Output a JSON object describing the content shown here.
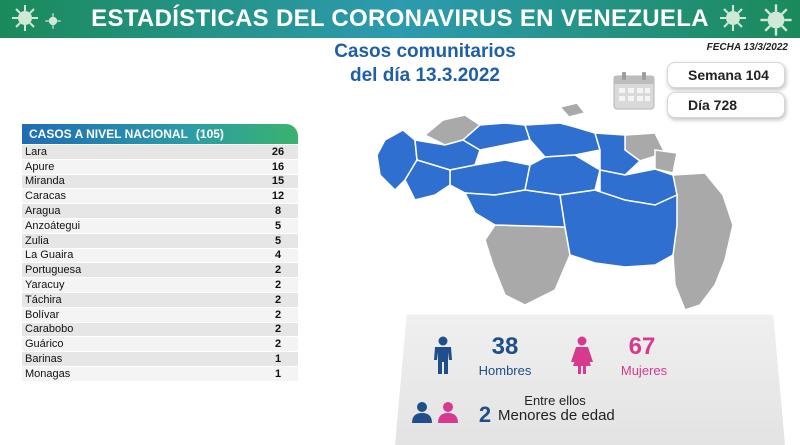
{
  "header": {
    "title": "ESTADÍSTICAS DEL CORONAVIRUS EN VENEZUELA"
  },
  "subtitle": {
    "line1": "Casos comunitarios",
    "line2": "del día 13.3.2022"
  },
  "fecha": "FECHA 13/3/2022",
  "week": {
    "label": "Semana 104"
  },
  "day": {
    "label": "Día 728"
  },
  "table": {
    "title": "CASOS A NIVEL NACIONAL",
    "total": "(105)",
    "rows": [
      {
        "state": "Lara",
        "cases": "26"
      },
      {
        "state": "Apure",
        "cases": "16"
      },
      {
        "state": "Miranda",
        "cases": "15"
      },
      {
        "state": "Caracas",
        "cases": "12"
      },
      {
        "state": "Aragua",
        "cases": "8"
      },
      {
        "state": "Anzoátegui",
        "cases": "5"
      },
      {
        "state": "Zulia",
        "cases": "5"
      },
      {
        "state": "La Guaira",
        "cases": "4"
      },
      {
        "state": "Portuguesa",
        "cases": "2"
      },
      {
        "state": "Yaracuy",
        "cases": "2"
      },
      {
        "state": "Táchira",
        "cases": "2"
      },
      {
        "state": "Bolívar",
        "cases": "2"
      },
      {
        "state": "Carabobo",
        "cases": "2"
      },
      {
        "state": "Guárico",
        "cases": "2"
      },
      {
        "state": "Barinas",
        "cases": "1"
      },
      {
        "state": "Monagas",
        "cases": "1"
      }
    ]
  },
  "gender": {
    "men_count": "38",
    "men_label": "Hombres",
    "women_count": "67",
    "women_label": "Mujeres"
  },
  "minors": {
    "title": "Entre ellos",
    "count": "2",
    "label": "Menores de edad"
  },
  "colors": {
    "header_green": "#1b8a5a",
    "header_blue": "#2d9bb0",
    "title_blue": "#1f5fa8",
    "map_blue": "#2f6fd0",
    "map_gray": "#a9a9a9",
    "men_blue": "#1f4e8a",
    "women_pink": "#d63a8e"
  },
  "icons": [
    "virus-icon",
    "calendar-icon",
    "man-icon",
    "woman-icon",
    "child-icon"
  ]
}
